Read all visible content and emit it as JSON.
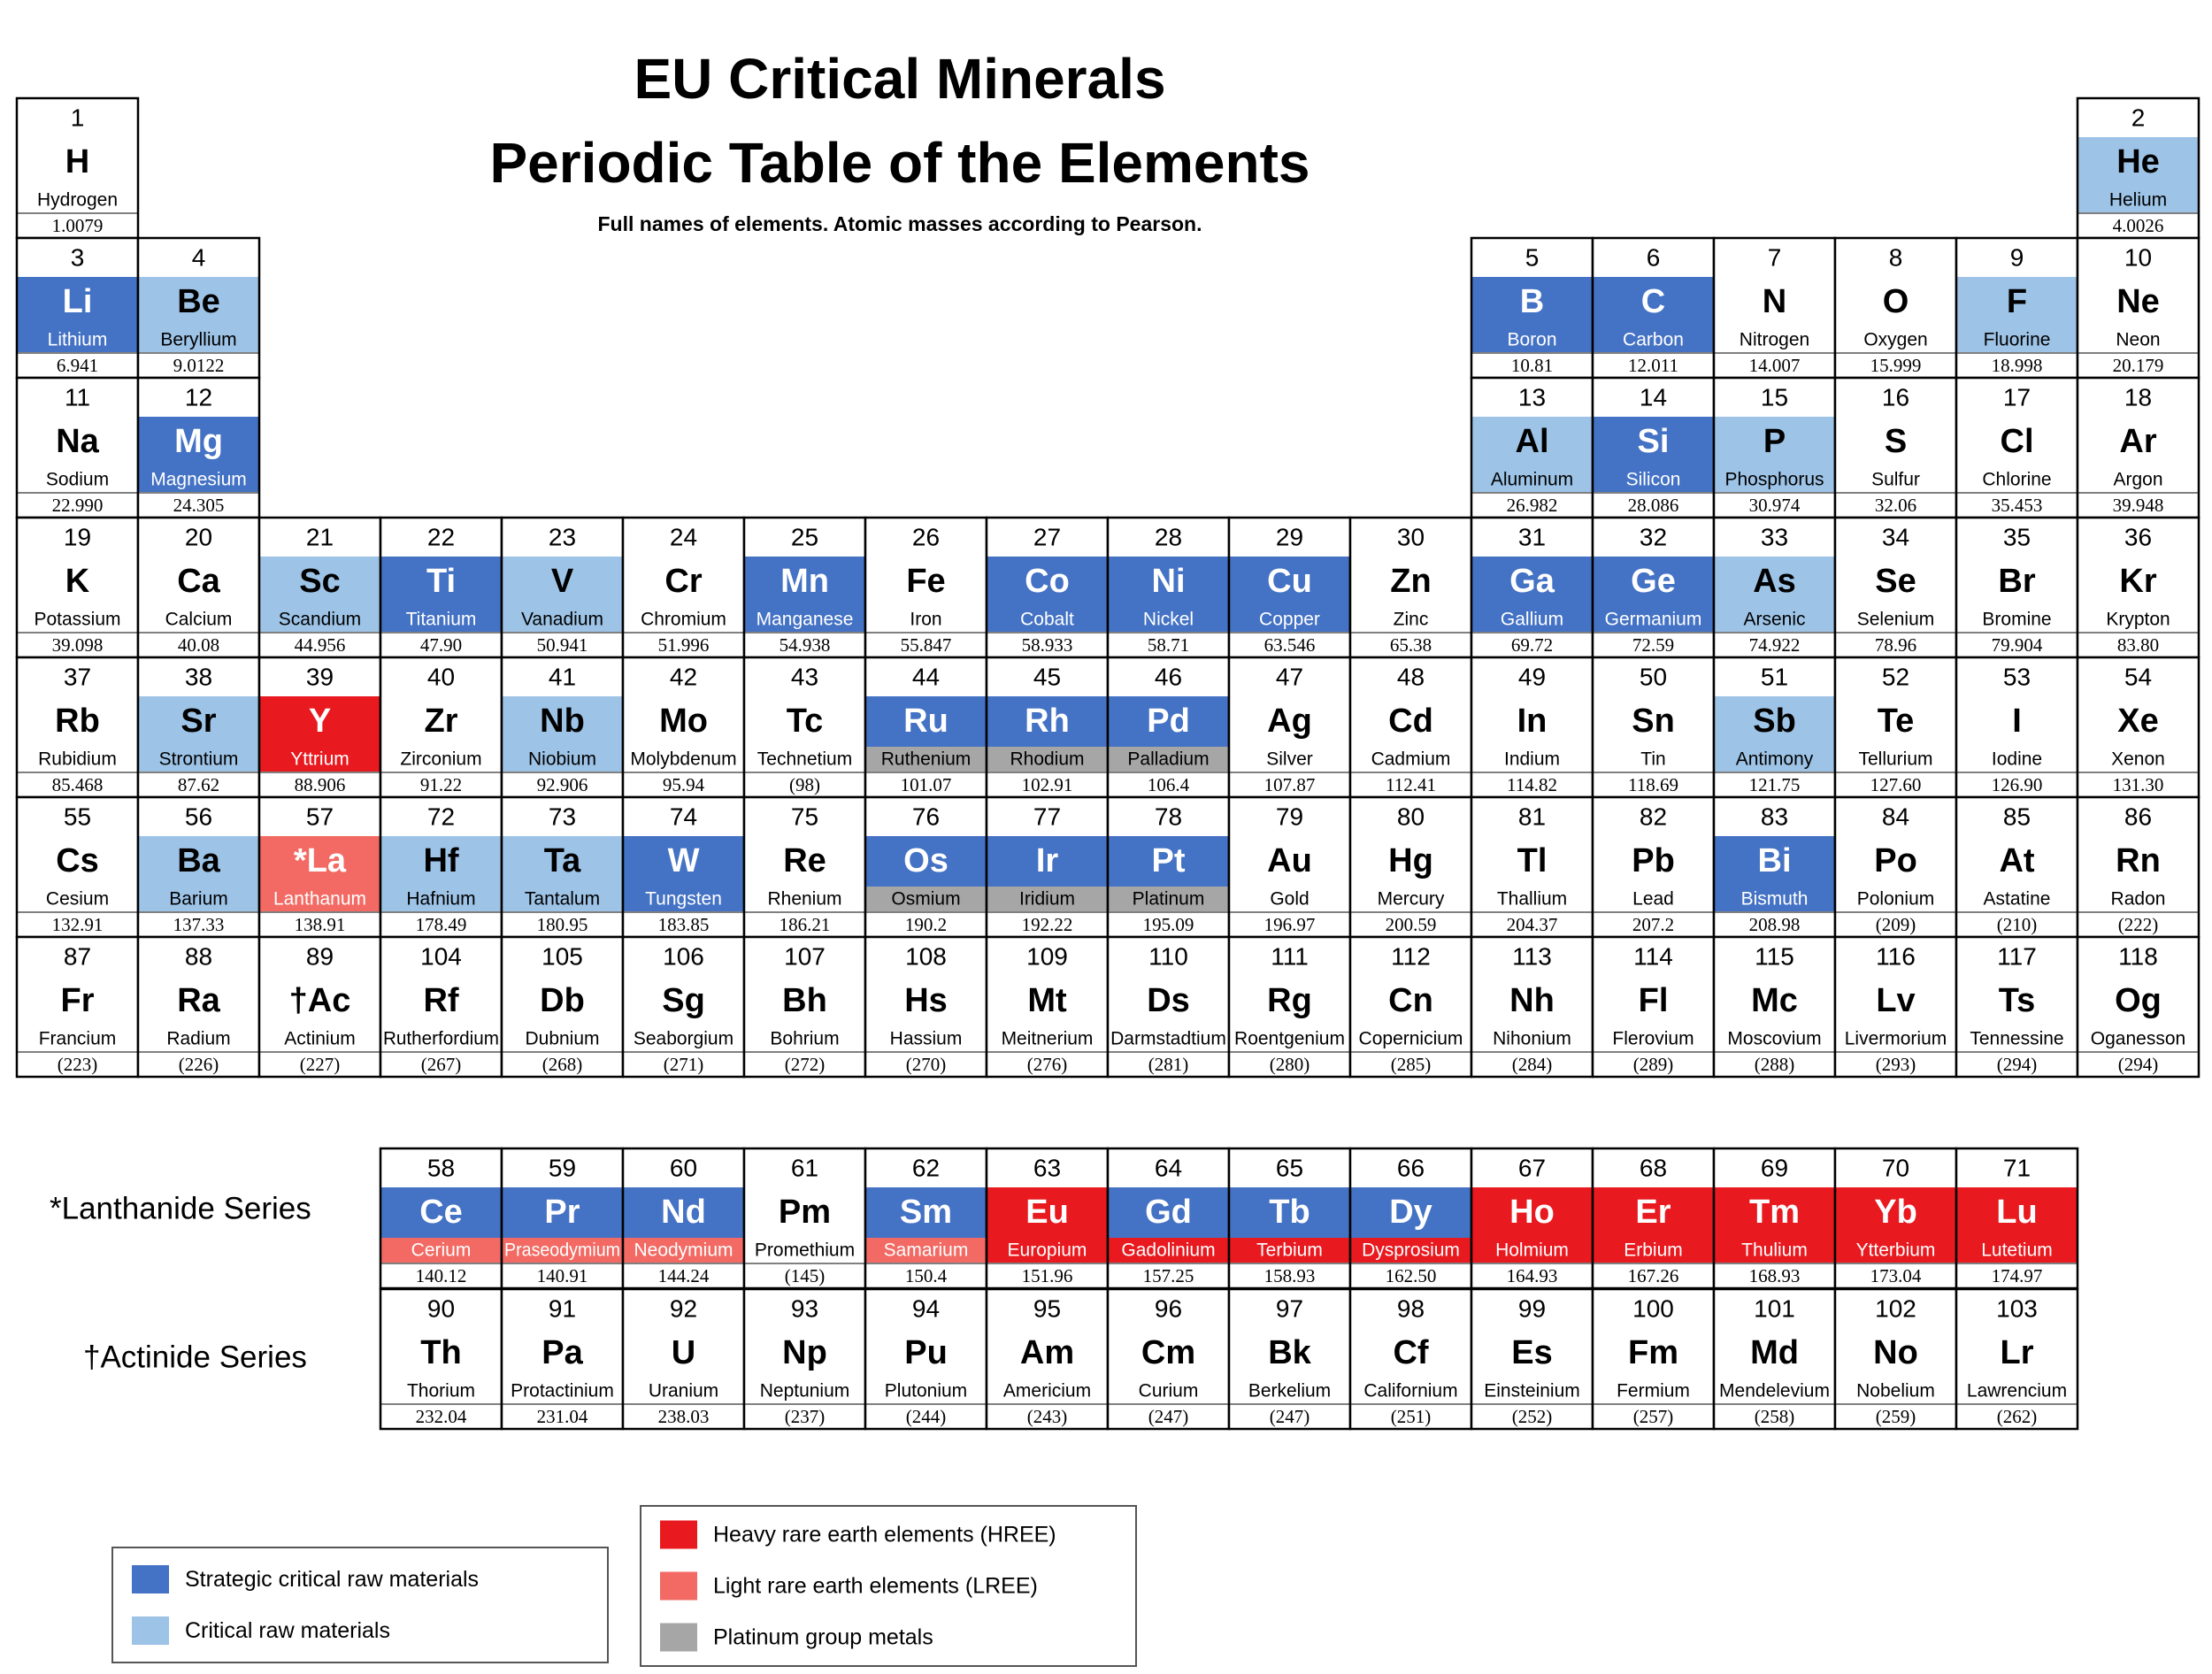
{
  "header": {
    "title": "EU Critical Minerals",
    "title2": "Periodic Table of the Elements",
    "subtitle": "Full names of elements. Atomic masses according to Pearson."
  },
  "series_labels": {
    "lanthanide": "*Lanthanide Series",
    "actinide": "†Actinide Series"
  },
  "legend": [
    [
      {
        "label": "Strategic critical raw materials",
        "color": "#4472c4"
      },
      {
        "label": "Critical raw materials",
        "color": "#9dc3e6"
      }
    ],
    [
      {
        "label": "Heavy rare earth elements (HREE)",
        "color": "#e8191f"
      },
      {
        "label": "Light rare earth elements (LREE)",
        "color": "#f26a63"
      },
      {
        "label": "Platinum group metals",
        "color": "#a6a6a6"
      }
    ]
  ],
  "elements": [
    [
      1,
      "H",
      "Hydrogen",
      "1.0079"
    ],
    [
      2,
      "He",
      "Helium",
      "4.0026",
      1
    ],
    [
      3,
      "Li",
      "Lithium",
      "6.941",
      0
    ],
    [
      4,
      "Be",
      "Beryllium",
      "9.0122",
      1
    ],
    [
      5,
      "B",
      "Boron",
      "10.81",
      0
    ],
    [
      6,
      "C",
      "Carbon",
      "12.011",
      0
    ],
    [
      7,
      "N",
      "Nitrogen",
      "14.007"
    ],
    [
      8,
      "O",
      "Oxygen",
      "15.999"
    ],
    [
      9,
      "F",
      "Fluorine",
      "18.998",
      1
    ],
    [
      10,
      "Ne",
      "Neon",
      "20.179"
    ],
    [
      11,
      "Na",
      "Sodium",
      "22.990"
    ],
    [
      12,
      "Mg",
      "Magnesium",
      "24.305",
      0
    ],
    [
      13,
      "Al",
      "Aluminum",
      "26.982",
      1
    ],
    [
      14,
      "Si",
      "Silicon",
      "28.086",
      0
    ],
    [
      15,
      "P",
      "Phosphorus",
      "30.974",
      1
    ],
    [
      16,
      "S",
      "Sulfur",
      "32.06"
    ],
    [
      17,
      "Cl",
      "Chlorine",
      "35.453"
    ],
    [
      18,
      "Ar",
      "Argon",
      "39.948"
    ],
    [
      19,
      "K",
      "Potassium",
      "39.098"
    ],
    [
      20,
      "Ca",
      "Calcium",
      "40.08"
    ],
    [
      21,
      "Sc",
      "Scandium",
      "44.956",
      1
    ],
    [
      22,
      "Ti",
      "Titanium",
      "47.90",
      0
    ],
    [
      23,
      "V",
      "Vanadium",
      "50.941",
      1
    ],
    [
      24,
      "Cr",
      "Chromium",
      "51.996"
    ],
    [
      25,
      "Mn",
      "Manganese",
      "54.938",
      0
    ],
    [
      26,
      "Fe",
      "Iron",
      "55.847"
    ],
    [
      27,
      "Co",
      "Cobalt",
      "58.933",
      0
    ],
    [
      28,
      "Ni",
      "Nickel",
      "58.71",
      0
    ],
    [
      29,
      "Cu",
      "Copper",
      "63.546",
      0
    ],
    [
      30,
      "Zn",
      "Zinc",
      "65.38"
    ],
    [
      31,
      "Ga",
      "Gallium",
      "69.72",
      0
    ],
    [
      32,
      "Ge",
      "Germanium",
      "72.59",
      0
    ],
    [
      33,
      "As",
      "Arsenic",
      "74.922",
      1
    ],
    [
      34,
      "Se",
      "Selenium",
      "78.96"
    ],
    [
      35,
      "Br",
      "Bromine",
      "79.904"
    ],
    [
      36,
      "Kr",
      "Krypton",
      "83.80"
    ],
    [
      37,
      "Rb",
      "Rubidium",
      "85.468"
    ],
    [
      38,
      "Sr",
      "Strontium",
      "87.62",
      1
    ],
    [
      39,
      "Y",
      "Yttrium",
      "88.906",
      2
    ],
    [
      40,
      "Zr",
      "Zirconium",
      "91.22"
    ],
    [
      41,
      "Nb",
      "Niobium",
      "92.906",
      1
    ],
    [
      42,
      "Mo",
      "Molybdenum",
      "95.94"
    ],
    [
      43,
      "Tc",
      "Technetium",
      "(98)"
    ],
    [
      44,
      "Ru",
      "Ruthenium",
      "101.07",
      0,
      4
    ],
    [
      45,
      "Rh",
      "Rhodium",
      "102.91",
      0,
      4
    ],
    [
      46,
      "Pd",
      "Palladium",
      "106.4",
      0,
      4
    ],
    [
      47,
      "Ag",
      "Silver",
      "107.87"
    ],
    [
      48,
      "Cd",
      "Cadmium",
      "112.41"
    ],
    [
      49,
      "In",
      "Indium",
      "114.82"
    ],
    [
      50,
      "Sn",
      "Tin",
      "118.69"
    ],
    [
      51,
      "Sb",
      "Antimony",
      "121.75",
      1
    ],
    [
      52,
      "Te",
      "Tellurium",
      "127.60"
    ],
    [
      53,
      "I",
      "Iodine",
      "126.90"
    ],
    [
      54,
      "Xe",
      "Xenon",
      "131.30"
    ],
    [
      55,
      "Cs",
      "Cesium",
      "132.91"
    ],
    [
      56,
      "Ba",
      "Barium",
      "137.33",
      1
    ],
    [
      57,
      "*La",
      "Lanthanum",
      "138.91",
      3
    ],
    [
      58,
      "Ce",
      "Cerium",
      "140.12",
      0,
      3
    ],
    [
      59,
      "Pr",
      "Praseodymium",
      "140.91",
      0,
      3
    ],
    [
      60,
      "Nd",
      "Neodymium",
      "144.24",
      0,
      3
    ],
    [
      61,
      "Pm",
      "Promethium",
      "(145)"
    ],
    [
      62,
      "Sm",
      "Samarium",
      "150.4",
      0,
      3
    ],
    [
      63,
      "Eu",
      "Europium",
      "151.96",
      2
    ],
    [
      64,
      "Gd",
      "Gadolinium",
      "157.25",
      0,
      2
    ],
    [
      65,
      "Tb",
      "Terbium",
      "158.93",
      0,
      2
    ],
    [
      66,
      "Dy",
      "Dysprosium",
      "162.50",
      0,
      2
    ],
    [
      67,
      "Ho",
      "Holmium",
      "164.93",
      2
    ],
    [
      68,
      "Er",
      "Erbium",
      "167.26",
      2
    ],
    [
      69,
      "Tm",
      "Thulium",
      "168.93",
      2
    ],
    [
      70,
      "Yb",
      "Ytterbium",
      "173.04",
      2
    ],
    [
      71,
      "Lu",
      "Lutetium",
      "174.97",
      2
    ],
    [
      72,
      "Hf",
      "Hafnium",
      "178.49",
      1
    ],
    [
      73,
      "Ta",
      "Tantalum",
      "180.95",
      1
    ],
    [
      74,
      "W",
      "Tungsten",
      "183.85",
      0
    ],
    [
      75,
      "Re",
      "Rhenium",
      "186.21"
    ],
    [
      76,
      "Os",
      "Osmium",
      "190.2",
      0,
      4
    ],
    [
      77,
      "Ir",
      "Iridium",
      "192.22",
      0,
      4
    ],
    [
      78,
      "Pt",
      "Platinum",
      "195.09",
      0,
      4
    ],
    [
      79,
      "Au",
      "Gold",
      "196.97"
    ],
    [
      80,
      "Hg",
      "Mercury",
      "200.59"
    ],
    [
      81,
      "Tl",
      "Thallium",
      "204.37"
    ],
    [
      82,
      "Pb",
      "Lead",
      "207.2"
    ],
    [
      83,
      "Bi",
      "Bismuth",
      "208.98",
      0
    ],
    [
      84,
      "Po",
      "Polonium",
      "(209)"
    ],
    [
      85,
      "At",
      "Astatine",
      "(210)"
    ],
    [
      86,
      "Rn",
      "Radon",
      "(222)"
    ],
    [
      87,
      "Fr",
      "Francium",
      "(223)"
    ],
    [
      88,
      "Ra",
      "Radium",
      "(226)"
    ],
    [
      89,
      "†Ac",
      "Actinium",
      "(227)"
    ],
    [
      90,
      "Th",
      "Thorium",
      "232.04"
    ],
    [
      91,
      "Pa",
      "Protactinium",
      "231.04"
    ],
    [
      92,
      "U",
      "Uranium",
      "238.03"
    ],
    [
      93,
      "Np",
      "Neptunium",
      "(237)"
    ],
    [
      94,
      "Pu",
      "Plutonium",
      "(244)"
    ],
    [
      95,
      "Am",
      "Americium",
      "(243)"
    ],
    [
      96,
      "Cm",
      "Curium",
      "(247)"
    ],
    [
      97,
      "Bk",
      "Berkelium",
      "(247)"
    ],
    [
      98,
      "Cf",
      "Californium",
      "(251)"
    ],
    [
      99,
      "Es",
      "Einsteinium",
      "(252)"
    ],
    [
      100,
      "Fm",
      "Fermium",
      "(257)"
    ],
    [
      101,
      "Md",
      "Mendelevium",
      "(258)"
    ],
    [
      102,
      "No",
      "Nobelium",
      "(259)"
    ],
    [
      103,
      "Lr",
      "Lawrencium",
      "(262)"
    ],
    [
      104,
      "Rf",
      "Rutherfordium",
      "(267)"
    ],
    [
      105,
      "Db",
      "Dubnium",
      "(268)"
    ],
    [
      106,
      "Sg",
      "Seaborgium",
      "(271)"
    ],
    [
      107,
      "Bh",
      "Bohrium",
      "(272)"
    ],
    [
      108,
      "Hs",
      "Hassium",
      "(270)"
    ],
    [
      109,
      "Mt",
      "Meitnerium",
      "(276)"
    ],
    [
      110,
      "Ds",
      "Darmstadtium",
      "(281)"
    ],
    [
      111,
      "Rg",
      "Roentgenium",
      "(280)"
    ],
    [
      112,
      "Cn",
      "Copernicium",
      "(285)"
    ],
    [
      113,
      "Nh",
      "Nihonium",
      "(284)"
    ],
    [
      114,
      "Fl",
      "Flerovium",
      "(289)"
    ],
    [
      115,
      "Mc",
      "Moscovium",
      "(288)"
    ],
    [
      116,
      "Lv",
      "Livermorium",
      "(293)"
    ],
    [
      117,
      "Ts",
      "Tennessine",
      "(294)"
    ],
    [
      118,
      "Og",
      "Oganesson",
      "(294)"
    ]
  ]
}
